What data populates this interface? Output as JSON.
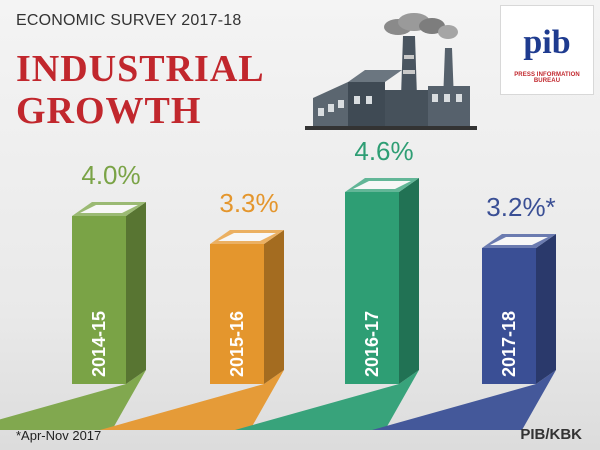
{
  "header": {
    "subtitle": "ECONOMIC SURVEY 2017-18",
    "title_line1": "INDUSTRIAL",
    "title_line2": "GROWTH"
  },
  "logo": {
    "word": "pib",
    "caption": "PRESS INFORMATION BUREAU"
  },
  "chart_data": {
    "type": "bar",
    "categories": [
      "2014-15",
      "2015-16",
      "2016-17",
      "2017-18"
    ],
    "values": [
      4.0,
      3.3,
      4.6,
      3.2
    ],
    "value_labels": [
      "4.0%",
      "3.3%",
      "4.6%",
      "3.2%*"
    ],
    "unit": "%",
    "colors": [
      "#7aa346",
      "#e4962d",
      "#2e9e74",
      "#3a4f95"
    ]
  },
  "footer": {
    "footnote": "*Apr-Nov 2017",
    "credit": "PIB/KBK"
  },
  "icons": {
    "factory": "factory-icon"
  }
}
